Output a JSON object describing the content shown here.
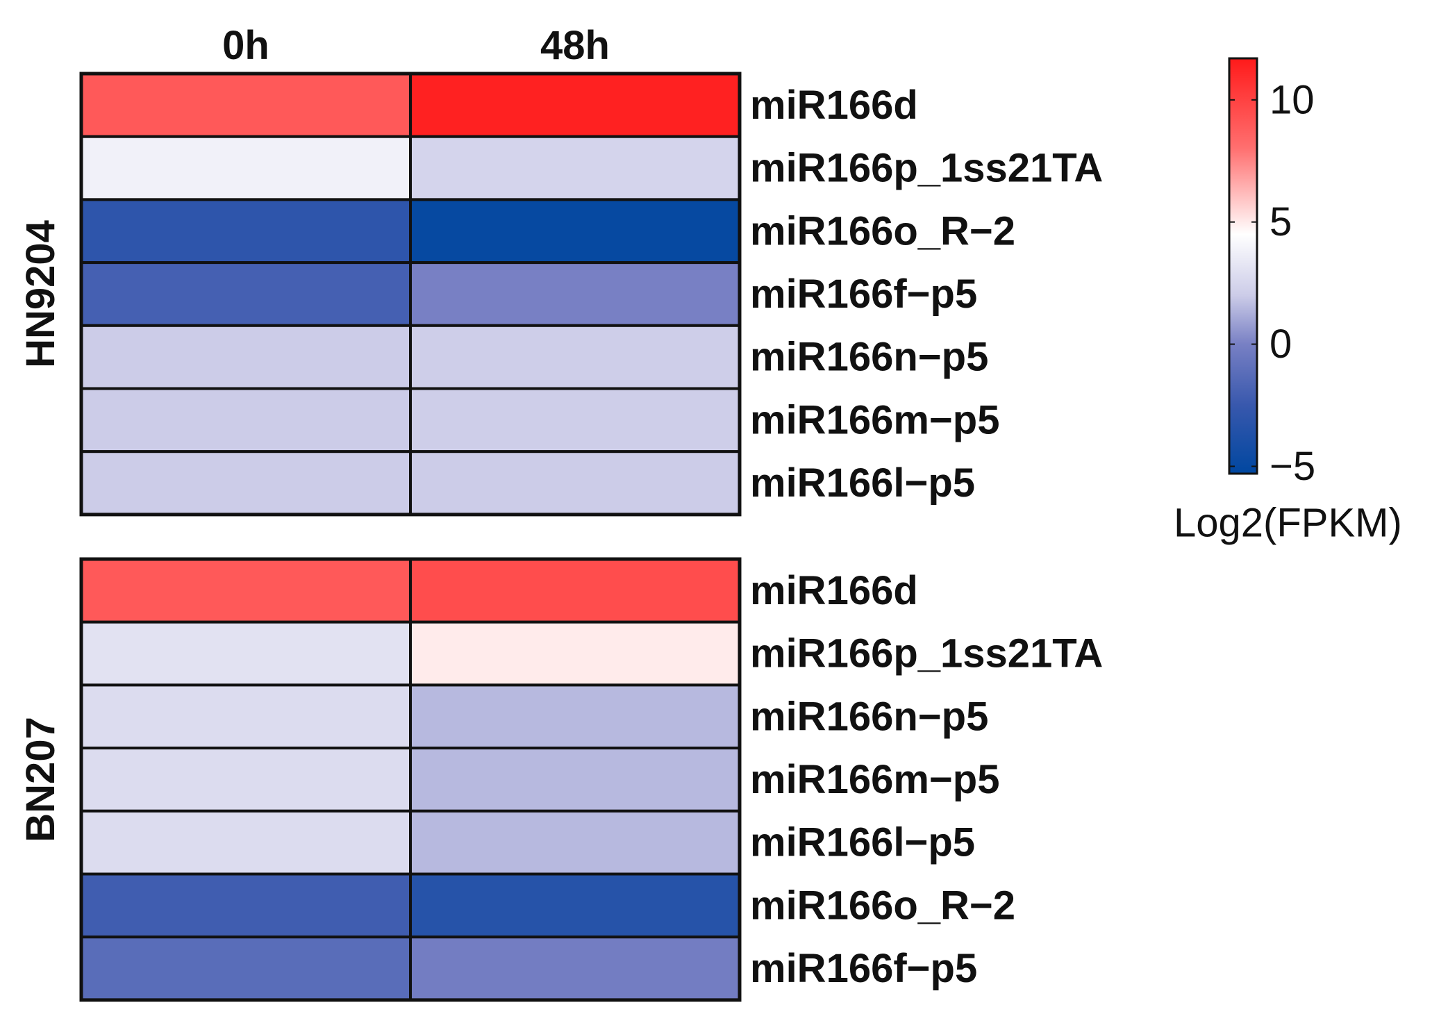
{
  "chart_data": {
    "type": "heatmap",
    "columns": [
      "0h",
      "48h"
    ],
    "color_scale": {
      "title": "Log2(FPKM)",
      "min": -5.3,
      "max": 11.7,
      "ticks": [
        {
          "value": -5,
          "label": "−5"
        },
        {
          "value": 0,
          "label": "0"
        },
        {
          "value": 5,
          "label": "5"
        },
        {
          "value": 10,
          "label": "10"
        }
      ],
      "stops": [
        {
          "value": -5.3,
          "color": "#0047A0"
        },
        {
          "value": -2.5,
          "color": "#3858AD"
        },
        {
          "value": 0,
          "color": "#7880C4"
        },
        {
          "value": 2,
          "color": "#CCCCE8"
        },
        {
          "value": 4.5,
          "color": "#FFFFFF"
        },
        {
          "value": 8,
          "color": "#FF7070"
        },
        {
          "value": 11.7,
          "color": "#FF1A1A"
        }
      ]
    },
    "groups": [
      {
        "name": "HN9204",
        "rows": [
          {
            "label": "miR166d",
            "values": [
              9.0,
              11.4
            ]
          },
          {
            "label": "miR166p_1ss21TA",
            "values": [
              3.8,
              2.4
            ]
          },
          {
            "label": "miR166o_R−2",
            "values": [
              -3.0,
              -5.0
            ]
          },
          {
            "label": "miR166f−p5",
            "values": [
              -2.0,
              0.0
            ]
          },
          {
            "label": "miR166n−p5",
            "values": [
              2.0,
              2.1
            ]
          },
          {
            "label": "miR166m−p5",
            "values": [
              2.0,
              2.1
            ]
          },
          {
            "label": "miR166l−p5",
            "values": [
              2.0,
              2.0
            ]
          }
        ]
      },
      {
        "name": "BN207",
        "rows": [
          {
            "label": "miR166d",
            "values": [
              9.0,
              9.5
            ]
          },
          {
            "label": "miR166p_1ss21TA",
            "values": [
              3.1,
              5.0
            ]
          },
          {
            "label": "miR166n−p5",
            "values": [
              2.8,
              1.5
            ]
          },
          {
            "label": "miR166m−p5",
            "values": [
              2.8,
              1.5
            ]
          },
          {
            "label": "miR166l−p5",
            "values": [
              2.8,
              1.5
            ]
          },
          {
            "label": "miR166o_R−2",
            "values": [
              -2.2,
              -3.4
            ]
          },
          {
            "label": "miR166f−p5",
            "values": [
              -1.2,
              -0.2
            ]
          }
        ]
      }
    ]
  }
}
